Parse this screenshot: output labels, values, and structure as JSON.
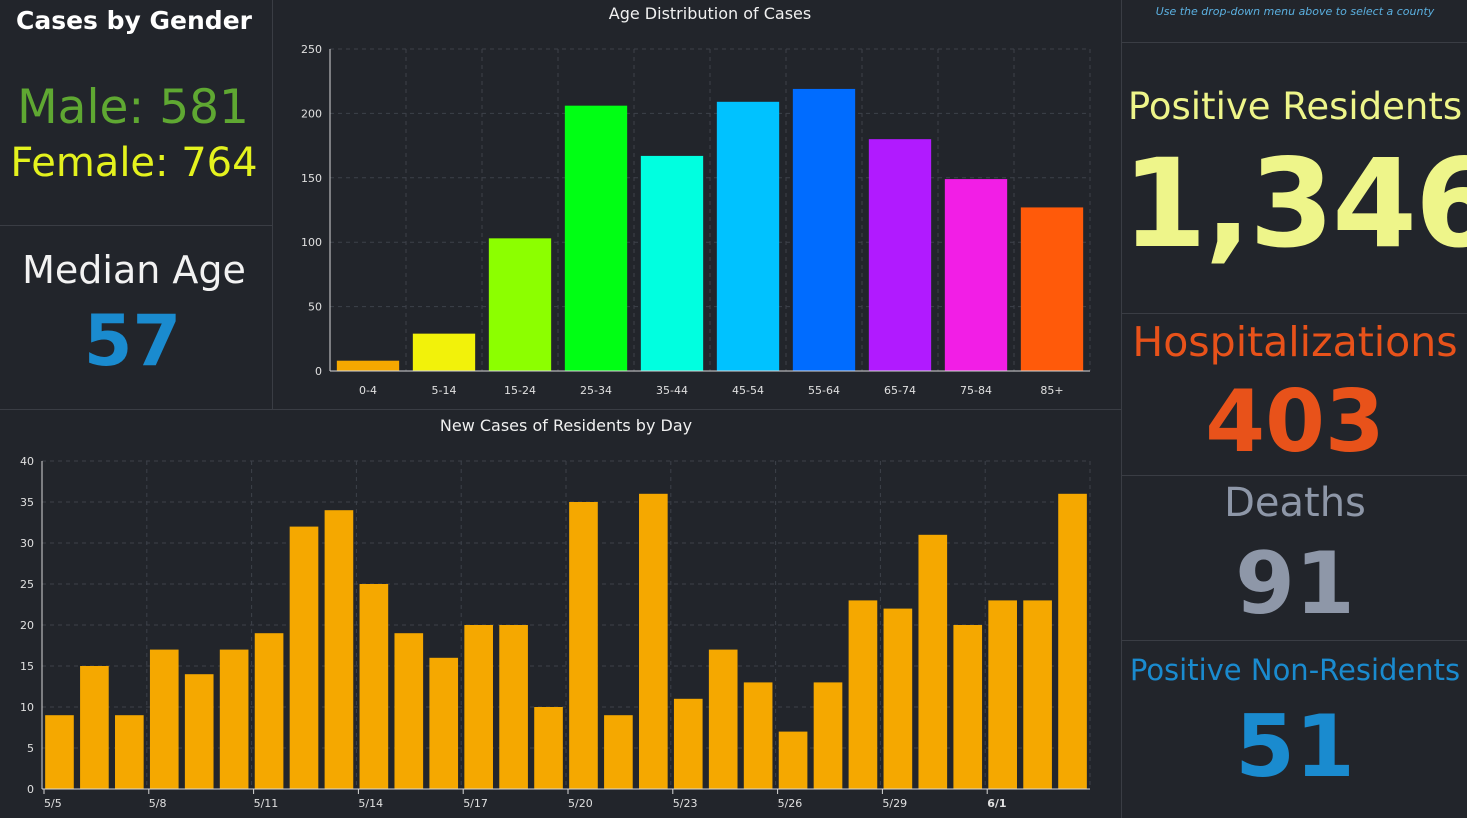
{
  "gender": {
    "title": "Cases by Gender",
    "male_text": "Male: 581",
    "female_text": "Female: 764"
  },
  "median_age": {
    "title": "Median Age",
    "value": "57"
  },
  "right_panel": {
    "hint": "Use the drop-down menu above to select a county",
    "positive_label": "Positive Residents",
    "positive_value": "1,346",
    "hosp_label": "Hospitalizations",
    "hosp_value": "403",
    "deaths_label": "Deaths",
    "deaths_value": "91",
    "nonres_label": "Positive Non-Residents",
    "nonres_value": "51"
  },
  "colors": {
    "background": "#22252b",
    "male": "#5fa832",
    "female": "#e4f21e",
    "median": "#1a8bcf",
    "positive": "#eef58a",
    "hospitalizations": "#e8521a",
    "deaths": "#8e97a8",
    "nonresidents": "#1a8bcf",
    "daily_bar": "#f5a800"
  },
  "chart_data": [
    {
      "type": "bar",
      "title": "Age Distribution of Cases",
      "categories": [
        "0-4",
        "5-14",
        "15-24",
        "25-34",
        "35-44",
        "45-54",
        "55-64",
        "65-74",
        "75-84",
        "85+"
      ],
      "values": [
        8,
        29,
        103,
        206,
        167,
        209,
        219,
        180,
        149,
        127
      ],
      "bar_colors": [
        "#f5a800",
        "#f2f20a",
        "#8cff00",
        "#00ff14",
        "#00ffe0",
        "#00c2ff",
        "#006cff",
        "#b11aff",
        "#f21ee6",
        "#ff5a0a"
      ],
      "ylim": [
        0,
        250
      ],
      "yticks": [
        0,
        50,
        100,
        150,
        200,
        250
      ],
      "xlabel": "",
      "ylabel": "",
      "grid": true,
      "legend": "none"
    },
    {
      "type": "bar",
      "title": "New Cases of Residents by Day",
      "categories": [
        "5/5",
        "5/6",
        "5/7",
        "5/8",
        "5/9",
        "5/10",
        "5/11",
        "5/12",
        "5/13",
        "5/14",
        "5/15",
        "5/16",
        "5/17",
        "5/18",
        "5/19",
        "5/20",
        "5/21",
        "5/22",
        "5/23",
        "5/24",
        "5/25",
        "5/26",
        "5/27",
        "5/28",
        "5/29",
        "5/30",
        "5/31",
        "6/1",
        "6/2",
        "6/3"
      ],
      "values": [
        9,
        15,
        9,
        17,
        14,
        17,
        19,
        32,
        34,
        25,
        19,
        16,
        20,
        20,
        10,
        35,
        9,
        36,
        11,
        17,
        13,
        7,
        13,
        23,
        22,
        31,
        20,
        23,
        23,
        36
      ],
      "xtick_labels": [
        "5/5",
        "5/8",
        "5/11",
        "5/14",
        "5/17",
        "5/20",
        "5/23",
        "5/26",
        "5/29",
        "6/1"
      ],
      "ylim": [
        0,
        40
      ],
      "yticks": [
        0,
        5,
        10,
        15,
        20,
        25,
        30,
        35,
        40
      ],
      "xlabel": "",
      "ylabel": "",
      "grid": true,
      "legend": "none"
    }
  ]
}
